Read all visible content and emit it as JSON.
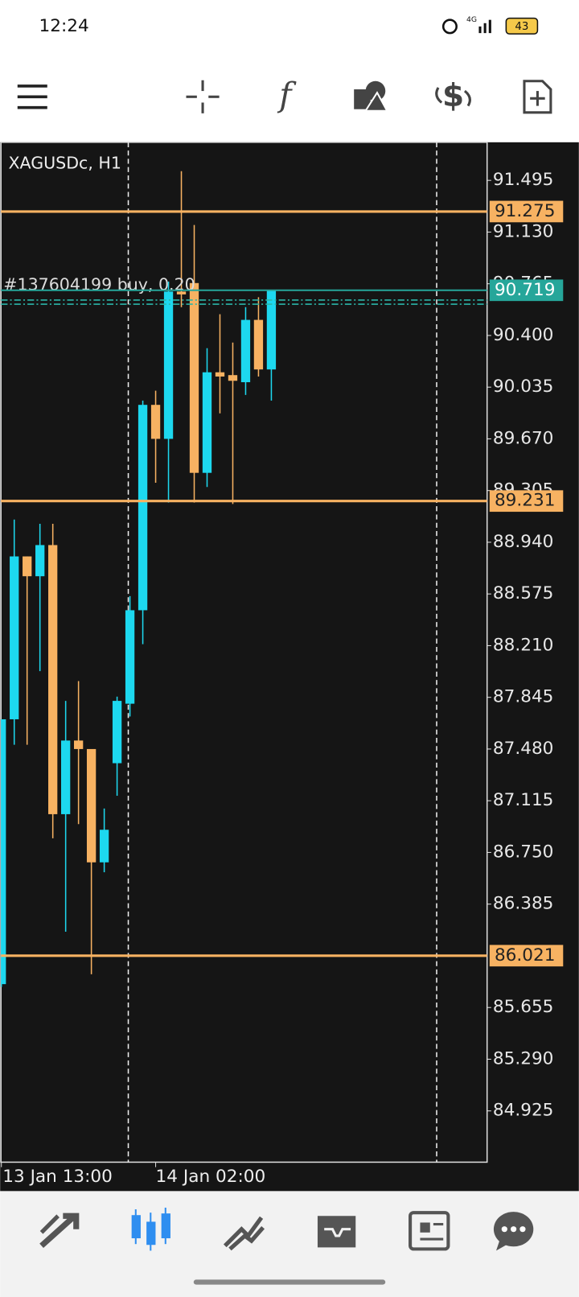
{
  "status_bar": {
    "time": "12:24",
    "network": "4G",
    "battery": "43"
  },
  "toolbar": {
    "function_icon": "f",
    "trade_icon": "$"
  },
  "chart_data": {
    "type": "candlestick",
    "title": "XAGUSDc, H1",
    "categories": [
      "13 Jan 13:00",
      null,
      null,
      null,
      null,
      null,
      null,
      null,
      null,
      null,
      null,
      null,
      "14 Jan 02:00",
      null,
      null,
      null,
      null,
      null,
      null,
      null,
      null,
      null
    ],
    "open": [
      85.82,
      87.69,
      88.84,
      88.7,
      88.92,
      87.02,
      87.54,
      87.48,
      86.68,
      87.38,
      87.8,
      88.46,
      89.91,
      89.67,
      90.71,
      90.77,
      89.43,
      90.14,
      90.12,
      90.07,
      90.51,
      90.16
    ],
    "high": [
      87.69,
      89.1,
      88.84,
      89.07,
      89.07,
      87.82,
      87.96,
      87.48,
      87.06,
      87.85,
      88.56,
      89.94,
      90.01,
      90.78,
      91.56,
      91.18,
      90.31,
      90.55,
      90.35,
      90.6,
      90.67,
      90.72
    ],
    "low": [
      85.8,
      87.51,
      87.51,
      88.03,
      86.85,
      86.19,
      86.95,
      85.89,
      86.61,
      87.15,
      87.71,
      88.22,
      89.36,
      89.22,
      90.6,
      89.22,
      89.33,
      89.85,
      89.21,
      89.98,
      90.11,
      89.94
    ],
    "close": [
      87.69,
      88.84,
      88.7,
      88.92,
      87.02,
      87.54,
      87.48,
      86.68,
      86.91,
      87.82,
      88.46,
      89.91,
      89.67,
      90.71,
      90.69,
      89.43,
      90.14,
      90.11,
      90.08,
      90.51,
      90.16,
      90.72
    ],
    "up_color": "#1dd8ef",
    "down_color": "#f7b262",
    "ylim": [
      84.563,
      91.764
    ],
    "yticks": [
      91.495,
      {
        "value": 91.13,
        "label": "91.130"
      },
      90.765,
      {
        "value": 90.4,
        "label": "90.400"
      },
      90.035,
      {
        "value": 89.67,
        "label": "89.670"
      },
      89.305,
      {
        "value": 88.94,
        "label": "88.940"
      },
      88.575,
      {
        "value": 88.21,
        "label": "88.210"
      },
      87.845,
      {
        "value": 87.48,
        "label": "87.480"
      },
      87.115,
      {
        "value": 86.75,
        "label": "86.750"
      },
      86.385,
      85.655,
      {
        "value": 85.29,
        "label": "85.290"
      },
      84.925
    ],
    "levels": [
      {
        "value": 91.275,
        "color": "#f7b262"
      },
      {
        "value": 89.231,
        "color": "#f7b262"
      },
      {
        "value": 86.021,
        "color": "#f7b262"
      }
    ],
    "current_price": {
      "value": 90.719,
      "color": "#26a69a"
    },
    "position": {
      "label": "#137604199 buy, 0.20",
      "value": 90.65
    }
  }
}
